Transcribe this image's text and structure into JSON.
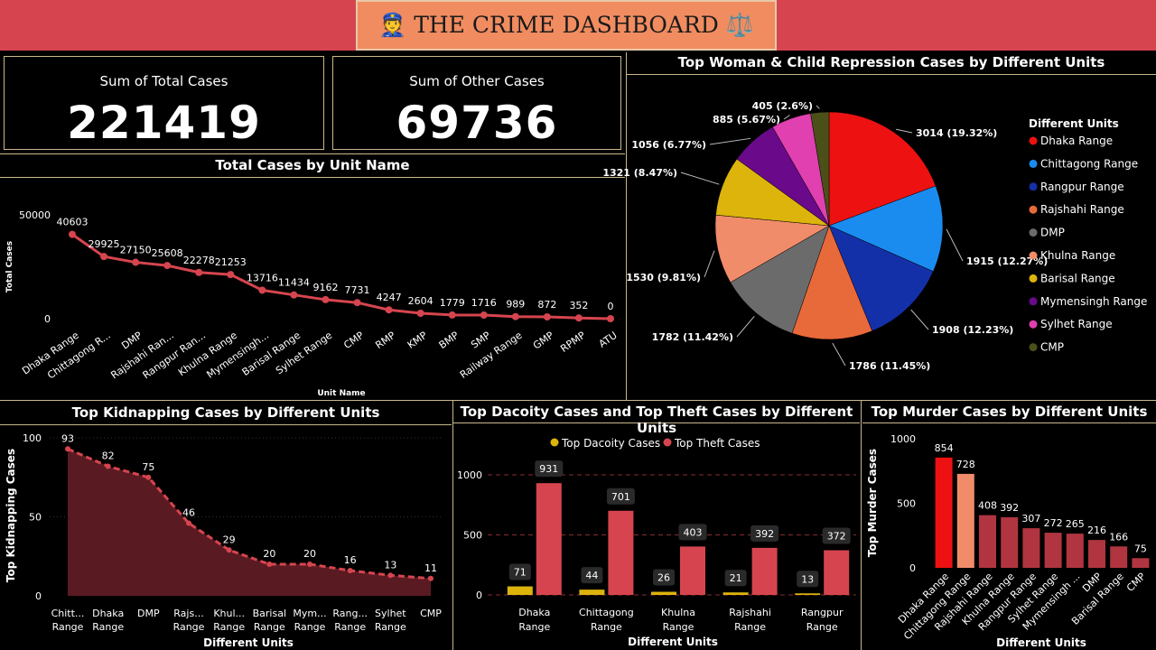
{
  "header": {
    "title": "👮 THE CRIME DASHBOARD ⚖️"
  },
  "kpis": [
    {
      "label": "Sum of Total Cases",
      "value": "221419"
    },
    {
      "label": "Sum of Other Cases",
      "value": "69736"
    }
  ],
  "chart_data": [
    {
      "id": "total",
      "type": "line",
      "title": "Total Cases by Unit Name",
      "xlabel": "Unit Name",
      "ylabel": "Total Cases",
      "ylim": [
        0,
        50000
      ],
      "yticks": [
        0,
        50000
      ],
      "color": "#d6454f",
      "categories": [
        "Dhaka Range",
        "Chittagong R...",
        "DMP",
        "Rajshahi Ran...",
        "Rangpur Ran...",
        "Khulna Range",
        "Mymensingh...",
        "Barisal Range",
        "Sylhet Range",
        "CMP",
        "RMP",
        "KMP",
        "BMP",
        "SMP",
        "Railway Range",
        "GMP",
        "RPMP",
        "ATU"
      ],
      "values": [
        40603,
        29925,
        27150,
        25608,
        22278,
        21253,
        13716,
        11434,
        9162,
        7731,
        4247,
        2604,
        1779,
        1716,
        989,
        872,
        352,
        0
      ]
    },
    {
      "id": "pie",
      "type": "pie",
      "title": "Top Woman & Child Repression Cases by Different Units",
      "legend_title": "Different Units",
      "legend": "right",
      "slices": [
        {
          "name": "Dhaka Range",
          "value": 3014,
          "pct": "19.32%",
          "color": "#ee1111"
        },
        {
          "name": "Chittagong Range",
          "value": 1915,
          "pct": "12.27%",
          "color": "#1a8cf0"
        },
        {
          "name": "Rangpur Range",
          "value": 1908,
          "pct": "12.23%",
          "color": "#1430a8"
        },
        {
          "name": "Rajshahi Range",
          "value": 1786,
          "pct": "11.45%",
          "color": "#e8693a"
        },
        {
          "name": "DMP",
          "value": 1782,
          "pct": "11.42%",
          "color": "#6b6b6b"
        },
        {
          "name": "Khulna Range",
          "value": 1530,
          "pct": "9.81%",
          "color": "#f08c6a"
        },
        {
          "name": "Barisal Range",
          "value": 1321,
          "pct": "8.47%",
          "color": "#dcb40c"
        },
        {
          "name": "Mymensingh Range",
          "value": 1056,
          "pct": "6.77%",
          "color": "#6a0a8a"
        },
        {
          "name": "Sylhet Range",
          "value": 885,
          "pct": "5.67%",
          "color": "#e040b0"
        },
        {
          "name": "CMP",
          "value": 405,
          "pct": "2.6%",
          "color": "#4a5018"
        }
      ]
    },
    {
      "id": "kidnap",
      "type": "area",
      "title": "Top Kidnapping Cases by Different Units",
      "xlabel": "Different Units",
      "ylabel": "Top Kidnapping Cases",
      "ylim": [
        0,
        100
      ],
      "yticks": [
        0,
        50,
        100
      ],
      "color": "#d6454f",
      "categories": [
        "Chitt... Range",
        "Dhaka Range",
        "DMP",
        "Rajs... Range",
        "Khul... Range",
        "Barisal Range",
        "Mym... Range",
        "Rang... Range",
        "Sylhet Range",
        "CMP"
      ],
      "values": [
        93,
        82,
        75,
        46,
        29,
        20,
        20,
        16,
        13,
        11
      ]
    },
    {
      "id": "dacoity",
      "type": "bar",
      "title": "Top Dacoity Cases and Top Theft Cases by Different Units",
      "xlabel": "Different Units",
      "ylim": [
        0,
        1000
      ],
      "yticks": [
        0,
        500,
        1000
      ],
      "categories": [
        "Dhaka Range",
        "Chittagong Range",
        "Khulna Range",
        "Rajshahi Range",
        "Rangpur Range"
      ],
      "series": [
        {
          "name": "Top Dacoity Cases",
          "color": "#dcb40c",
          "values": [
            71,
            44,
            26,
            21,
            13
          ]
        },
        {
          "name": "Top Theft Cases",
          "color": "#d6454f",
          "values": [
            931,
            701,
            403,
            392,
            372
          ]
        }
      ]
    },
    {
      "id": "murder",
      "type": "bar",
      "title": "Top Murder Cases by Different Units",
      "xlabel": "Different Units",
      "ylabel": "Top Murder Cases",
      "ylim": [
        0,
        1000
      ],
      "yticks": [
        0,
        500,
        1000
      ],
      "categories": [
        "Dhaka Range",
        "Chittagong Range",
        "Rajshahi Range",
        "Khulna Range",
        "Rangpur Range",
        "Sylhet Range",
        "Mymensingh ...",
        "DMP",
        "Barisal Range",
        "CMP"
      ],
      "values": [
        854,
        728,
        408,
        392,
        307,
        272,
        265,
        216,
        166,
        75
      ],
      "colors": [
        "#ee1111",
        "#f08c6a",
        "#b03540",
        "#b03540",
        "#b03540",
        "#b03540",
        "#b03540",
        "#b03540",
        "#b03540",
        "#b03540"
      ]
    }
  ]
}
